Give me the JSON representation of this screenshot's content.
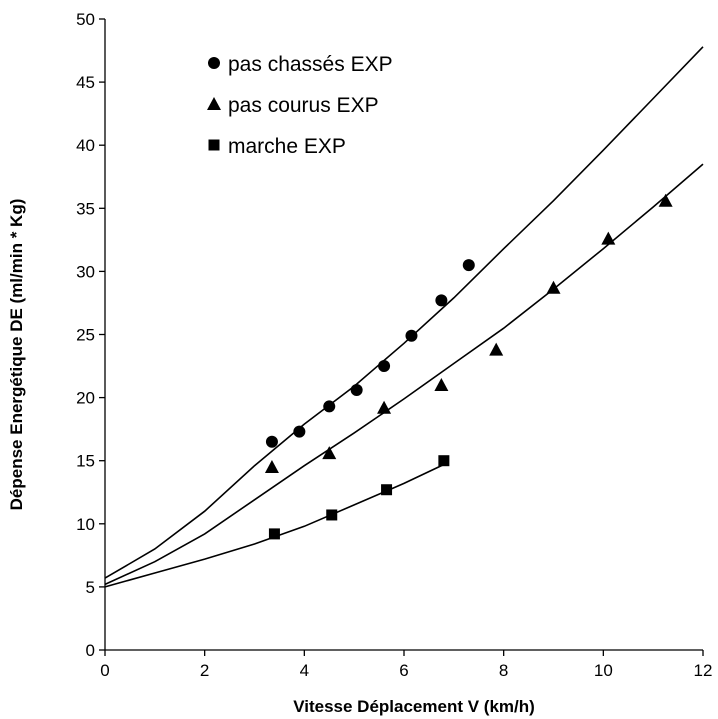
{
  "chart_data": {
    "type": "scatter",
    "xlabel": "Vitesse Déplacement V (km/h)",
    "ylabel": "Dépense Energétique DE (ml/min * Kg)",
    "xlim": [
      0,
      12
    ],
    "ylim": [
      0,
      50
    ],
    "xticks": [
      0,
      2,
      4,
      6,
      8,
      10,
      12
    ],
    "yticks": [
      0,
      5,
      10,
      15,
      20,
      25,
      30,
      35,
      40,
      45,
      50
    ],
    "grid": false,
    "legend_position": "top-left",
    "series": [
      {
        "name": "pas chassés EXP",
        "marker": "circle",
        "points": [
          [
            3.35,
            16.5
          ],
          [
            3.9,
            17.3
          ],
          [
            4.5,
            19.3
          ],
          [
            5.05,
            20.6
          ],
          [
            5.6,
            22.5
          ],
          [
            6.15,
            24.9
          ],
          [
            6.75,
            27.7
          ],
          [
            7.3,
            30.5
          ]
        ],
        "fit": [
          [
            0,
            5.7
          ],
          [
            1,
            8.0
          ],
          [
            2,
            11.0
          ],
          [
            3,
            14.6
          ],
          [
            4,
            17.9
          ],
          [
            5,
            20.9
          ],
          [
            6,
            24.3
          ],
          [
            7,
            27.9
          ],
          [
            8,
            31.8
          ],
          [
            9,
            35.6
          ],
          [
            10,
            39.6
          ],
          [
            11,
            43.7
          ],
          [
            12,
            47.8
          ]
        ]
      },
      {
        "name": "pas courus EXP",
        "marker": "triangle",
        "points": [
          [
            3.35,
            14.5
          ],
          [
            4.5,
            15.6
          ],
          [
            5.6,
            19.2
          ],
          [
            6.75,
            21.0
          ],
          [
            7.85,
            23.8
          ],
          [
            9.0,
            28.7
          ],
          [
            10.1,
            32.6
          ],
          [
            11.25,
            35.6
          ]
        ],
        "fit": [
          [
            0,
            5.2
          ],
          [
            1,
            7.0
          ],
          [
            2,
            9.2
          ],
          [
            3,
            11.9
          ],
          [
            4,
            14.6
          ],
          [
            5,
            17.2
          ],
          [
            6,
            19.9
          ],
          [
            7,
            22.7
          ],
          [
            8,
            25.5
          ],
          [
            9,
            28.6
          ],
          [
            10,
            31.8
          ],
          [
            11,
            35.1
          ],
          [
            12,
            38.5
          ]
        ]
      },
      {
        "name": "marche EXP",
        "marker": "square",
        "points": [
          [
            3.4,
            9.2
          ],
          [
            4.55,
            10.7
          ],
          [
            5.65,
            12.7
          ],
          [
            6.8,
            15.0
          ]
        ],
        "fit": [
          [
            0,
            5.0
          ],
          [
            1,
            6.1
          ],
          [
            2,
            7.2
          ],
          [
            3,
            8.4
          ],
          [
            4,
            9.8
          ],
          [
            5,
            11.5
          ],
          [
            6,
            13.2
          ],
          [
            6.8,
            14.7
          ]
        ]
      }
    ]
  }
}
